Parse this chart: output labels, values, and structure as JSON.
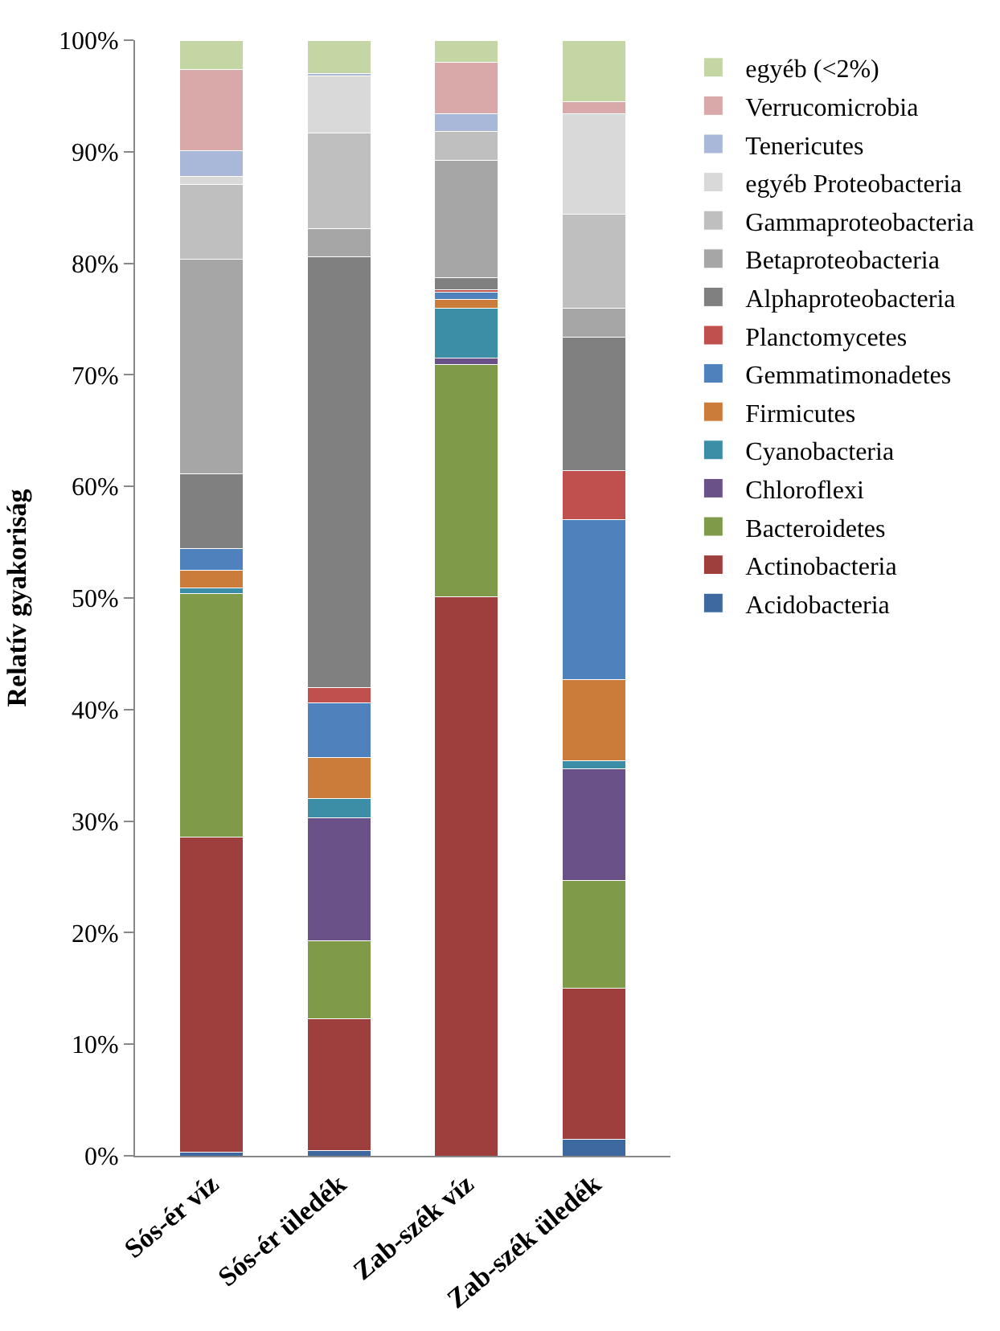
{
  "chart_data": {
    "type": "bar",
    "stacked": true,
    "ylabel": "Relatív gyakoriság",
    "categories": [
      "Sós-ér víz",
      "Sós-ér üledék",
      "Zab-szék víz",
      "Zab-szék üledék"
    ],
    "series": [
      {
        "name": "Acidobacteria",
        "color": "#3e68a0",
        "values": [
          0.3,
          0.5,
          0,
          1.5
        ]
      },
      {
        "name": "Actinobacteria",
        "color": "#9e3f3d",
        "values": [
          28.3,
          11.8,
          50.1,
          13.5
        ]
      },
      {
        "name": "Bacteroidetes",
        "color": "#7f9a48",
        "values": [
          21.8,
          7.0,
          20.8,
          9.7
        ]
      },
      {
        "name": "Chloroflexi",
        "color": "#6a5187",
        "values": [
          0,
          11.0,
          0.6,
          10.0
        ]
      },
      {
        "name": "Cyanobacteria",
        "color": "#3b8ea5",
        "values": [
          0.5,
          1.7,
          4.5,
          0.7
        ]
      },
      {
        "name": "Firmicutes",
        "color": "#cc7c3a",
        "values": [
          1.6,
          3.7,
          0.8,
          7.3
        ]
      },
      {
        "name": "Gemmatimonadetes",
        "color": "#4f81bd",
        "values": [
          1.9,
          4.9,
          0.6,
          14.3
        ]
      },
      {
        "name": "Planctomycetes",
        "color": "#c0504d",
        "values": [
          0,
          1.4,
          0.2,
          4.4
        ]
      },
      {
        "name": "Alphaproteobacteria",
        "color": "#808080",
        "values": [
          6.7,
          38.6,
          1.1,
          12.0
        ]
      },
      {
        "name": "Betaproteobacteria",
        "color": "#a6a6a6",
        "values": [
          19.3,
          2.5,
          10.5,
          2.6
        ]
      },
      {
        "name": "Gammaproteobacteria",
        "color": "#bfbfbf",
        "values": [
          6.7,
          8.6,
          2.6,
          8.4
        ]
      },
      {
        "name": "egyéb Proteobacteria",
        "color": "#d9d9d9",
        "values": [
          0.7,
          5.1,
          0,
          9.0
        ]
      },
      {
        "name": "Tenericutes",
        "color": "#a9b8d8",
        "values": [
          2.3,
          0.2,
          1.6,
          0
        ]
      },
      {
        "name": "Verrucomicrobia",
        "color": "#d9a8a8",
        "values": [
          7.3,
          0,
          4.6,
          1.1
        ]
      },
      {
        "name": "egyéb (<2%)",
        "color": "#c4d6a4",
        "values": [
          2.6,
          3.0,
          2.0,
          5.5
        ]
      }
    ],
    "ylim": [
      0,
      100
    ],
    "yticks": [
      {
        "value": 0,
        "label": "0%"
      },
      {
        "value": 10,
        "label": "10%"
      },
      {
        "value": 20,
        "label": "20%"
      },
      {
        "value": 30,
        "label": "30%"
      },
      {
        "value": 40,
        "label": "40%"
      },
      {
        "value": 50,
        "label": "50%"
      },
      {
        "value": 60,
        "label": "60%"
      },
      {
        "value": 70,
        "label": "70%"
      },
      {
        "value": 80,
        "label": "80%"
      },
      {
        "value": 90,
        "label": "90%"
      },
      {
        "value": 100,
        "label": "100%"
      }
    ],
    "legend": "right"
  }
}
